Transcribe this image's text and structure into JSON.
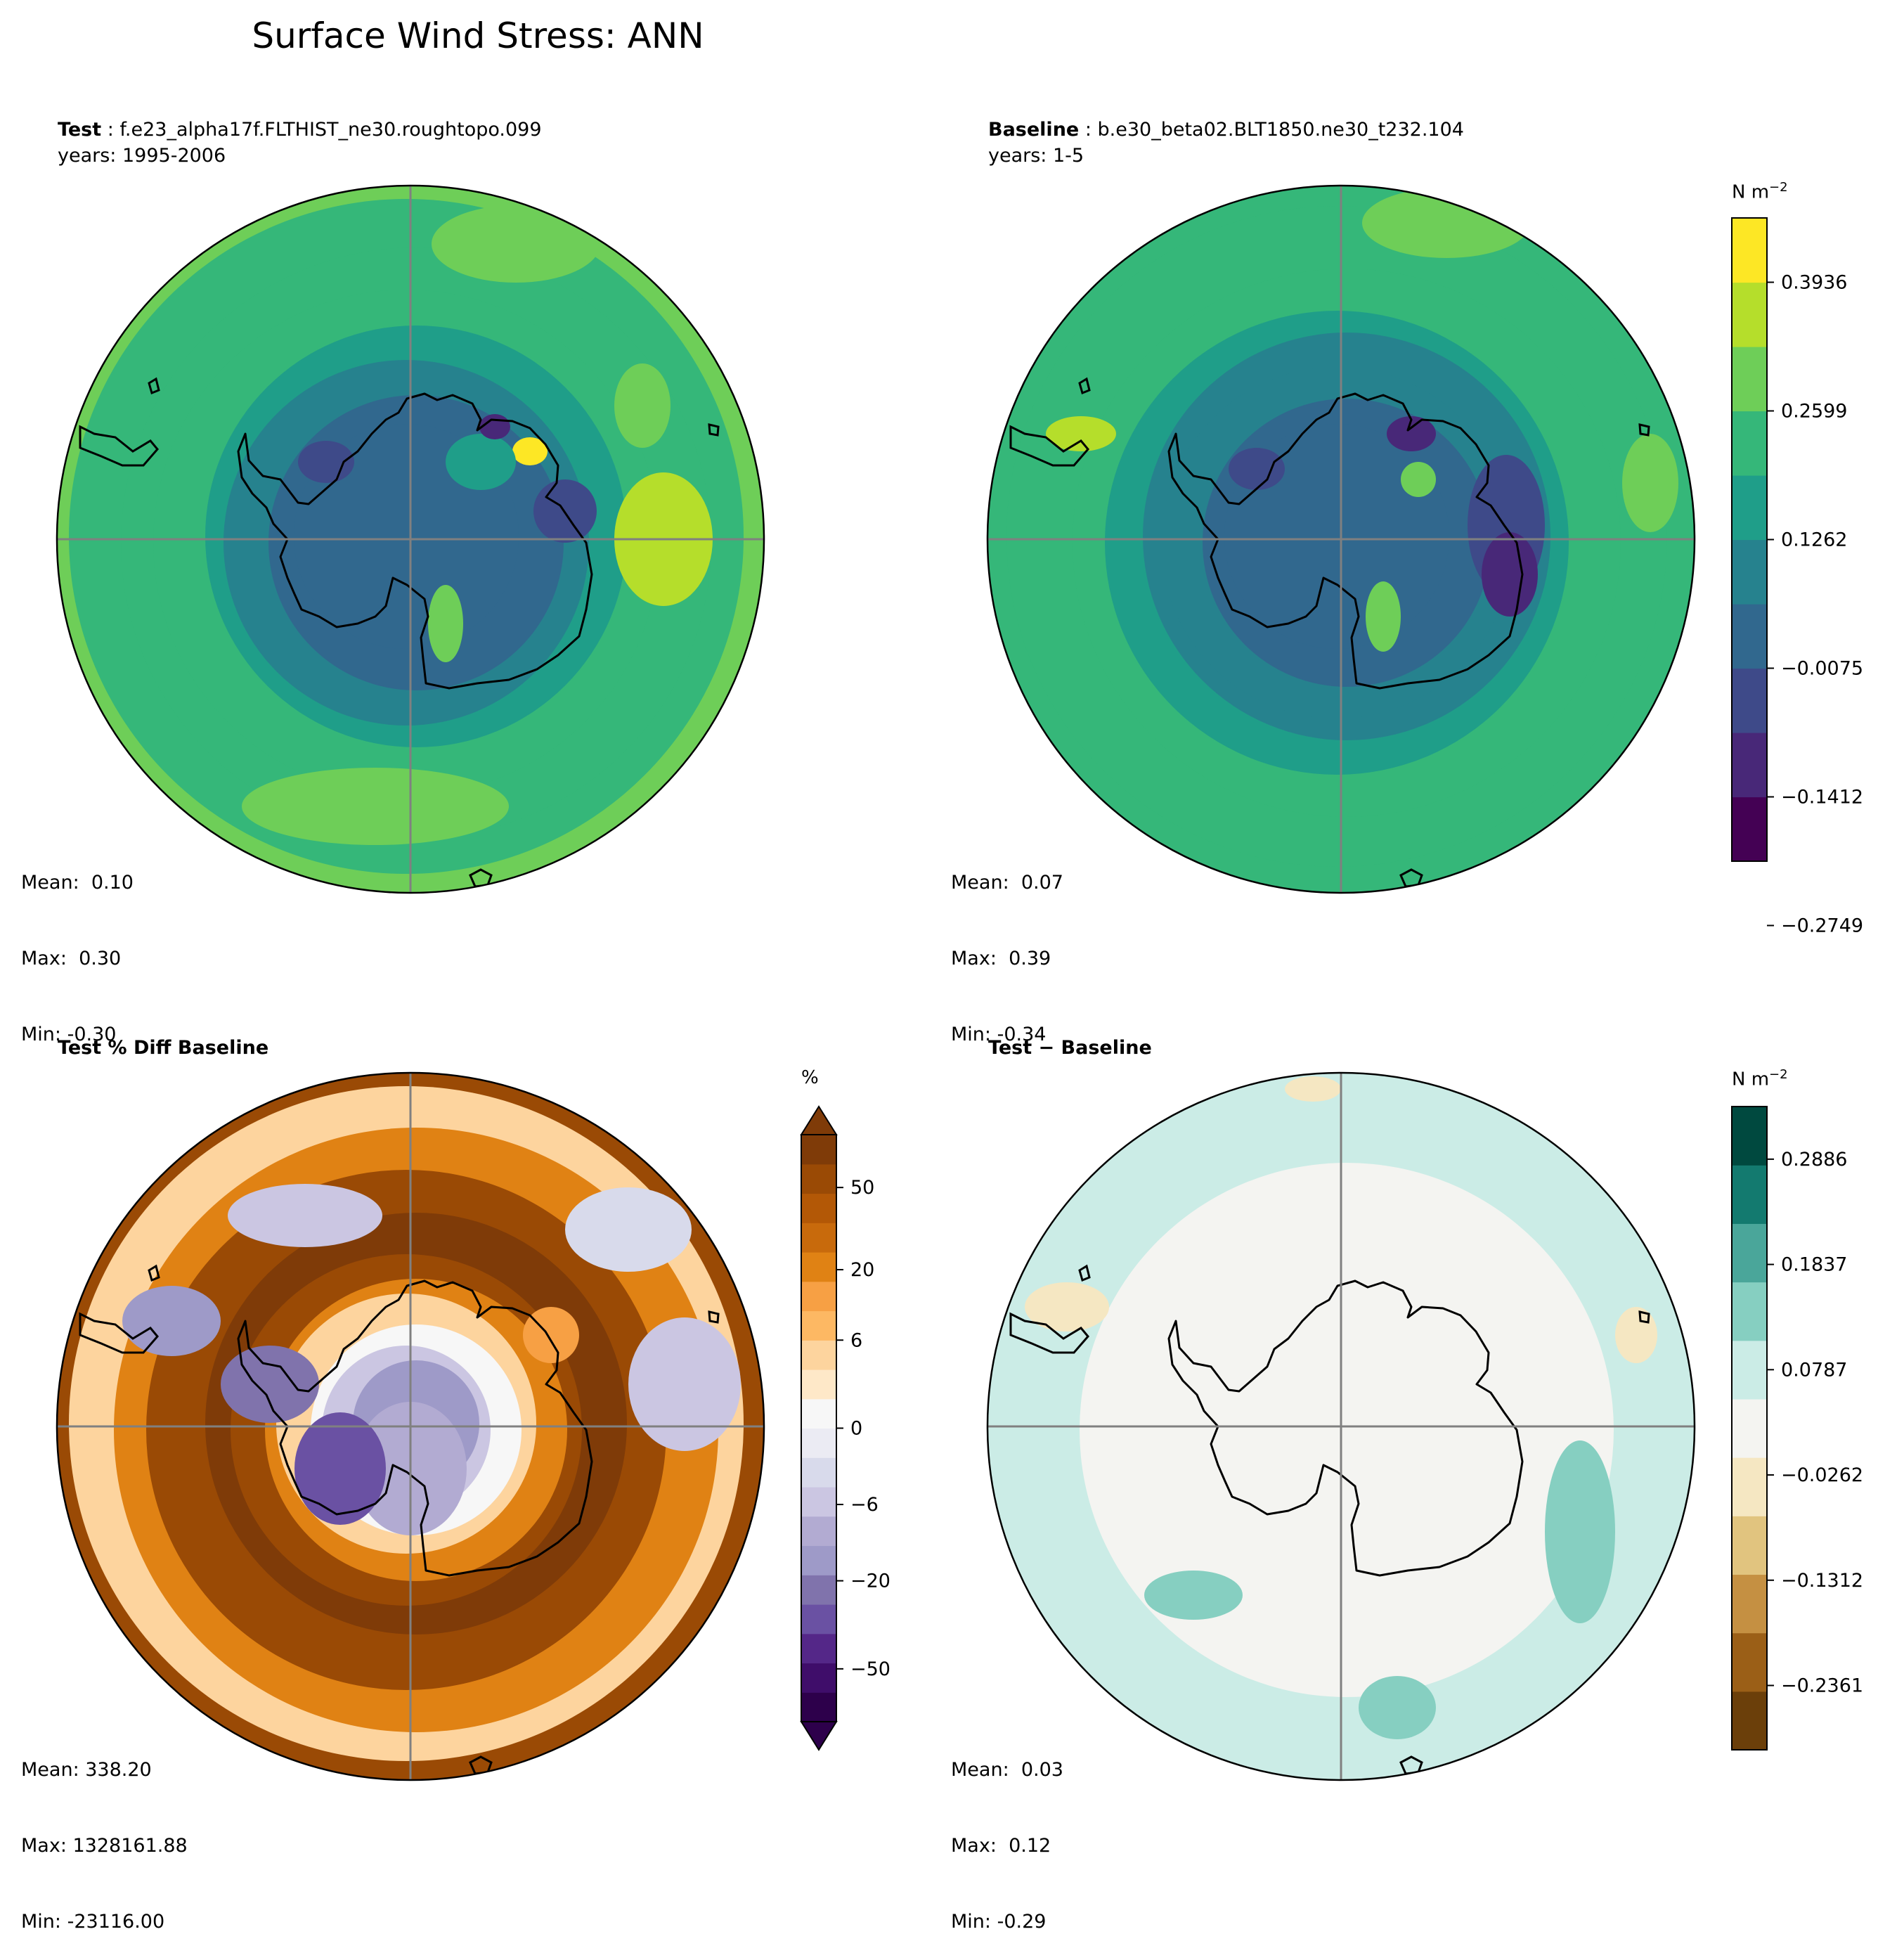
{
  "figure": {
    "title": "Surface Wind Stress: ANN"
  },
  "panels": [
    {
      "id": "test",
      "label": "Test",
      "sep": " : ",
      "case": "f.e23_alpha17f.FLTHIST_ne30.roughtopo.099",
      "years": "years: 1995-2006",
      "stats": {
        "mean": "Mean:  0.10",
        "max": "Max:  0.30",
        "min": "Min: -0.30"
      }
    },
    {
      "id": "baseline",
      "label": "Baseline",
      "sep": " : ",
      "case": "b.e30_beta02.BLT1850.ne30_t232.104",
      "years": "years: 1-5",
      "stats": {
        "mean": "Mean:  0.07",
        "max": "Max:  0.39",
        "min": "Min: -0.34"
      }
    },
    {
      "id": "pctdiff",
      "label": "Test % Diff Baseline",
      "stats": {
        "mean": "Mean: 338.20",
        "max": "Max: 1328161.88",
        "min": "Min: -23116.00"
      }
    },
    {
      "id": "diff",
      "label": "Test − Baseline",
      "stats": {
        "mean": "Mean:  0.03",
        "max": "Max:  0.12",
        "min": "Min: -0.29"
      }
    }
  ],
  "colorbars": {
    "main": {
      "unit": "N m",
      "unit_exp": "−2",
      "ticks": [
        "0.3936",
        "0.2599",
        "0.1262",
        "−0.0075",
        "−0.1412",
        "−0.2749"
      ],
      "colors": [
        "#440154",
        "#482878",
        "#3e4a89",
        "#31688e",
        "#26828e",
        "#1f9e89",
        "#35b779",
        "#6ece58",
        "#b5de2b",
        "#fde725"
      ]
    },
    "pct": {
      "unit": "%",
      "ticks": [
        "50",
        "20",
        "6",
        "0",
        "−6",
        "−20",
        "−50"
      ],
      "colors": [
        "#2d004b",
        "#3f0d6a",
        "#542788",
        "#6a51a3",
        "#8073ac",
        "#9e9ac8",
        "#b2abd2",
        "#cbc6e2",
        "#d8daeb",
        "#ebebf3",
        "#f7f7f7",
        "#fee8c8",
        "#fdd49e",
        "#fdb863",
        "#f7a044",
        "#e08214",
        "#c86a0c",
        "#b35806",
        "#9a4a05",
        "#7f3b08"
      ]
    },
    "diff": {
      "unit": "N m",
      "unit_exp": "−2",
      "ticks": [
        "0.2886",
        "0.1837",
        "0.0787",
        "−0.0262",
        "−0.1312",
        "−0.2361"
      ],
      "colors": [
        "#6b3f0a",
        "#9b5f17",
        "#c59042",
        "#e1c47f",
        "#f5e7c2",
        "#f4f4f1",
        "#cbece6",
        "#86cfc1",
        "#4aa69a",
        "#137a6f",
        "#00493f"
      ]
    }
  }
}
